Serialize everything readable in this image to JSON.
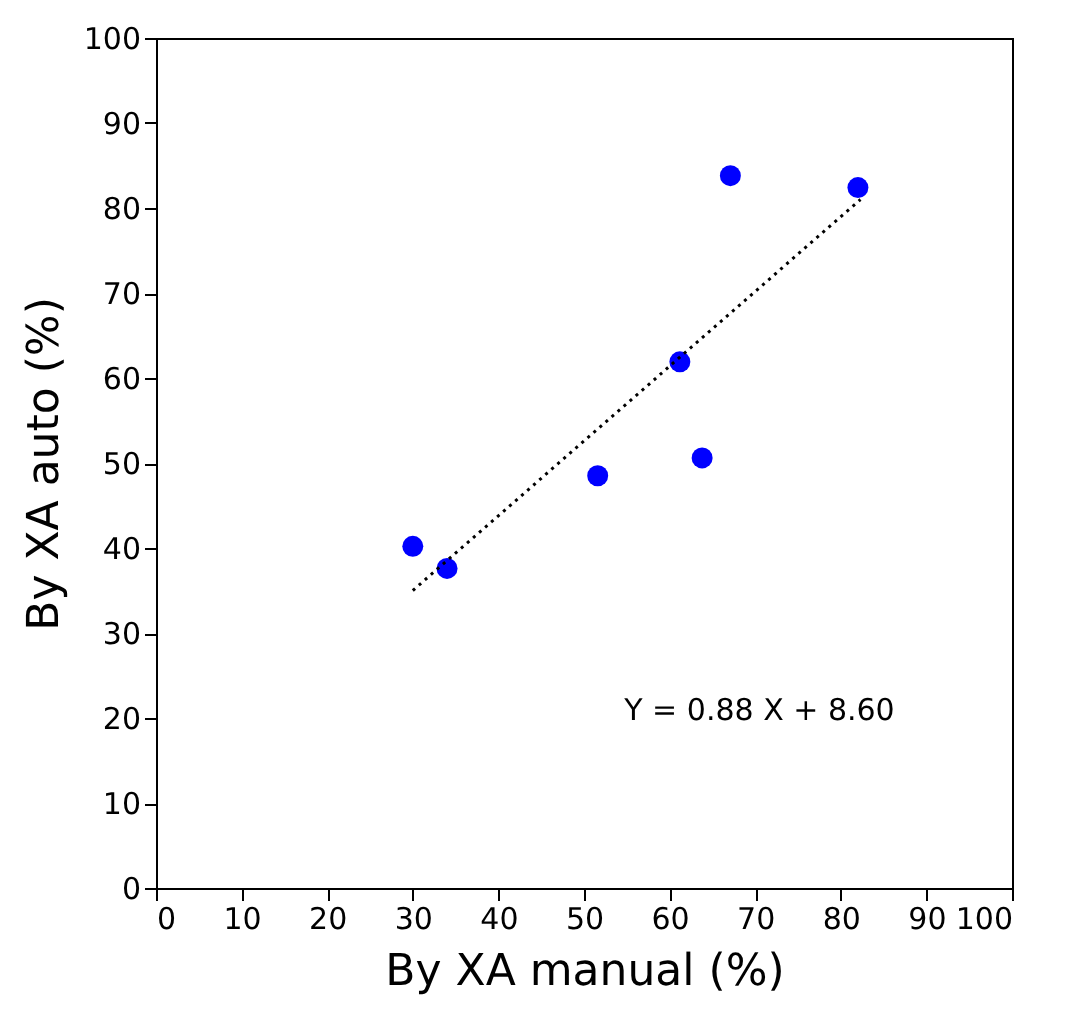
{
  "chart_data": {
    "type": "scatter",
    "xlabel": "By XA manual (%)",
    "ylabel": "By XA auto (%)",
    "xlim": [
      0,
      100
    ],
    "ylim": [
      0,
      100
    ],
    "xticks": [
      0,
      10,
      20,
      30,
      40,
      50,
      60,
      70,
      80,
      90,
      100
    ],
    "yticks": [
      0,
      10,
      20,
      30,
      40,
      50,
      60,
      70,
      80,
      90,
      100
    ],
    "grid": false,
    "annotations": [
      "Y = 0.88 X + 8.60"
    ],
    "series": [
      {
        "marker": "circle",
        "color": "#0000ff",
        "x": [
          30,
          34,
          51.6,
          61.2,
          63.8,
          67.1,
          82
        ],
        "values": [
          40.2,
          37.6,
          48.5,
          61.9,
          50.6,
          83.8,
          82.4
        ]
      },
      {
        "type": "line",
        "marker": "none",
        "color": "#000000",
        "line_style": "dotted",
        "x": [
          30,
          82.3
        ],
        "values": [
          35,
          81
        ]
      }
    ]
  }
}
